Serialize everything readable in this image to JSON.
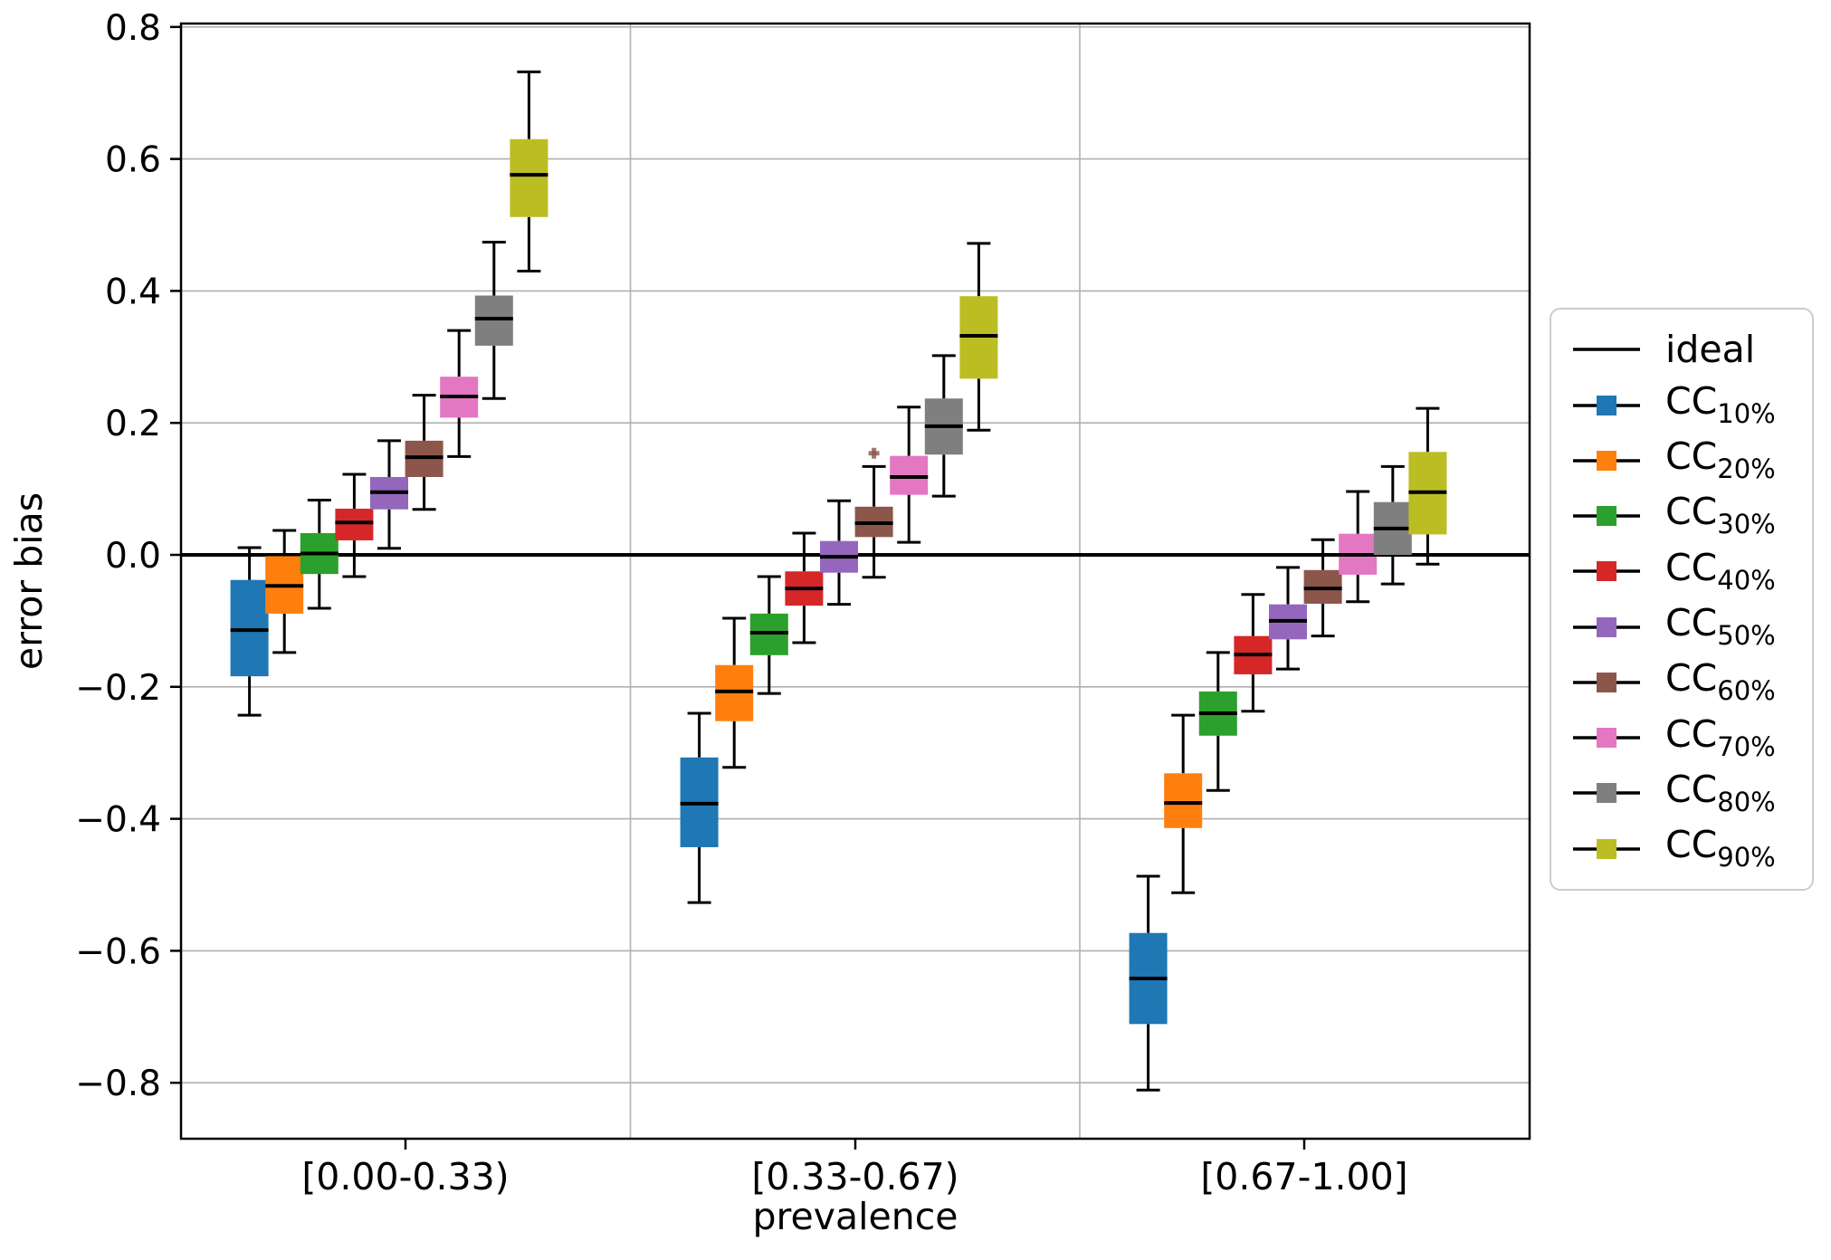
{
  "chart_data": {
    "type": "boxplot",
    "title": "",
    "xlabel": "prevalence",
    "ylabel": "error bias",
    "categories": [
      "[0.00-0.33)",
      "[0.33-0.67)",
      "[0.67-1.00]"
    ],
    "y_tick_labels": [
      "0.8",
      "0.6",
      "0.4",
      "0.2",
      "0.0",
      "−0.2",
      "−0.4",
      "−0.6",
      "−0.8"
    ],
    "y_tick_values": [
      0.8,
      0.6,
      0.4,
      0.2,
      0.0,
      -0.2,
      -0.4,
      -0.6,
      -0.8
    ],
    "ylim": [
      -0.885,
      0.805
    ],
    "grid": true,
    "legend_position": "right outside",
    "ideal_line": {
      "label": "ideal",
      "y": 0.0,
      "color": "#000000"
    },
    "series": [
      {
        "label_main": "CC",
        "label_sub": "10%",
        "color": "#1f77b4",
        "groups": [
          {
            "whislo": -0.243,
            "q1": -0.184,
            "med": -0.114,
            "q3": -0.038,
            "whishi": 0.011,
            "fliers": []
          },
          {
            "whislo": -0.527,
            "q1": -0.443,
            "med": -0.377,
            "q3": -0.307,
            "whishi": -0.24,
            "fliers": []
          },
          {
            "whislo": -0.811,
            "q1": -0.711,
            "med": -0.642,
            "q3": -0.573,
            "whishi": -0.487,
            "fliers": []
          }
        ]
      },
      {
        "label_main": "CC",
        "label_sub": "20%",
        "color": "#ff7f0e",
        "groups": [
          {
            "whislo": -0.148,
            "q1": -0.089,
            "med": -0.047,
            "q3": -0.002,
            "whishi": 0.037,
            "fliers": []
          },
          {
            "whislo": -0.322,
            "q1": -0.252,
            "med": -0.207,
            "q3": -0.167,
            "whishi": -0.096,
            "fliers": []
          },
          {
            "whislo": -0.512,
            "q1": -0.414,
            "med": -0.376,
            "q3": -0.331,
            "whishi": -0.243,
            "fliers": []
          }
        ]
      },
      {
        "label_main": "CC",
        "label_sub": "30%",
        "color": "#2ca02c",
        "groups": [
          {
            "whislo": -0.081,
            "q1": -0.029,
            "med": 0.002,
            "q3": 0.033,
            "whishi": 0.083,
            "fliers": []
          },
          {
            "whislo": -0.21,
            "q1": -0.152,
            "med": -0.118,
            "q3": -0.089,
            "whishi": -0.033,
            "fliers": []
          },
          {
            "whislo": -0.357,
            "q1": -0.274,
            "med": -0.24,
            "q3": -0.207,
            "whishi": -0.148,
            "fliers": []
          }
        ]
      },
      {
        "label_main": "CC",
        "label_sub": "40%",
        "color": "#d62728",
        "groups": [
          {
            "whislo": -0.033,
            "q1": 0.022,
            "med": 0.049,
            "q3": 0.07,
            "whishi": 0.122,
            "fliers": []
          },
          {
            "whislo": -0.133,
            "q1": -0.077,
            "med": -0.051,
            "q3": -0.025,
            "whishi": 0.033,
            "fliers": []
          },
          {
            "whislo": -0.237,
            "q1": -0.181,
            "med": -0.151,
            "q3": -0.123,
            "whishi": -0.06,
            "fliers": []
          }
        ]
      },
      {
        "label_main": "CC",
        "label_sub": "50%",
        "color": "#9467bd",
        "groups": [
          {
            "whislo": 0.01,
            "q1": 0.069,
            "med": 0.095,
            "q3": 0.118,
            "whishi": 0.173,
            "fliers": []
          },
          {
            "whislo": -0.075,
            "q1": -0.027,
            "med": -0.003,
            "q3": 0.021,
            "whishi": 0.082,
            "fliers": []
          },
          {
            "whislo": -0.173,
            "q1": -0.128,
            "med": -0.1,
            "q3": -0.075,
            "whishi": -0.019,
            "fliers": []
          }
        ]
      },
      {
        "label_main": "CC",
        "label_sub": "60%",
        "color": "#8c564b",
        "groups": [
          {
            "whislo": 0.069,
            "q1": 0.118,
            "med": 0.148,
            "q3": 0.173,
            "whishi": 0.242,
            "fliers": []
          },
          {
            "whislo": -0.034,
            "q1": 0.027,
            "med": 0.048,
            "q3": 0.073,
            "whishi": 0.134,
            "fliers": [
              0.154
            ]
          },
          {
            "whislo": -0.123,
            "q1": -0.074,
            "med": -0.051,
            "q3": -0.023,
            "whishi": 0.023,
            "fliers": []
          }
        ]
      },
      {
        "label_main": "CC",
        "label_sub": "70%",
        "color": "#e377c2",
        "groups": [
          {
            "whislo": 0.149,
            "q1": 0.208,
            "med": 0.24,
            "q3": 0.27,
            "whishi": 0.34,
            "fliers": []
          },
          {
            "whislo": 0.019,
            "q1": 0.091,
            "med": 0.118,
            "q3": 0.15,
            "whishi": 0.224,
            "fliers": []
          },
          {
            "whislo": -0.071,
            "q1": -0.03,
            "med": 0.0,
            "q3": 0.032,
            "whishi": 0.096,
            "fliers": []
          }
        ]
      },
      {
        "label_main": "CC",
        "label_sub": "80%",
        "color": "#7f7f7f",
        "groups": [
          {
            "whislo": 0.237,
            "q1": 0.317,
            "med": 0.358,
            "q3": 0.393,
            "whishi": 0.474,
            "fliers": []
          },
          {
            "whislo": 0.089,
            "q1": 0.152,
            "med": 0.195,
            "q3": 0.237,
            "whishi": 0.302,
            "fliers": []
          },
          {
            "whislo": -0.044,
            "q1": 0.0,
            "med": 0.04,
            "q3": 0.08,
            "whishi": 0.134,
            "fliers": []
          }
        ]
      },
      {
        "label_main": "CC",
        "label_sub": "90%",
        "color": "#bcbd22",
        "groups": [
          {
            "whislo": 0.43,
            "q1": 0.512,
            "med": 0.576,
            "q3": 0.63,
            "whishi": 0.732,
            "fliers": []
          },
          {
            "whislo": 0.189,
            "q1": 0.267,
            "med": 0.332,
            "q3": 0.392,
            "whishi": 0.472,
            "fliers": []
          },
          {
            "whislo": -0.014,
            "q1": 0.031,
            "med": 0.095,
            "q3": 0.156,
            "whishi": 0.222,
            "fliers": []
          }
        ]
      }
    ],
    "style_colors": {
      "grid": "#b0b0b0",
      "spine": "#000000",
      "median": "#000000",
      "whisker": "#000000",
      "ideal": "#000000",
      "legend_border": "#cccccc"
    }
  }
}
